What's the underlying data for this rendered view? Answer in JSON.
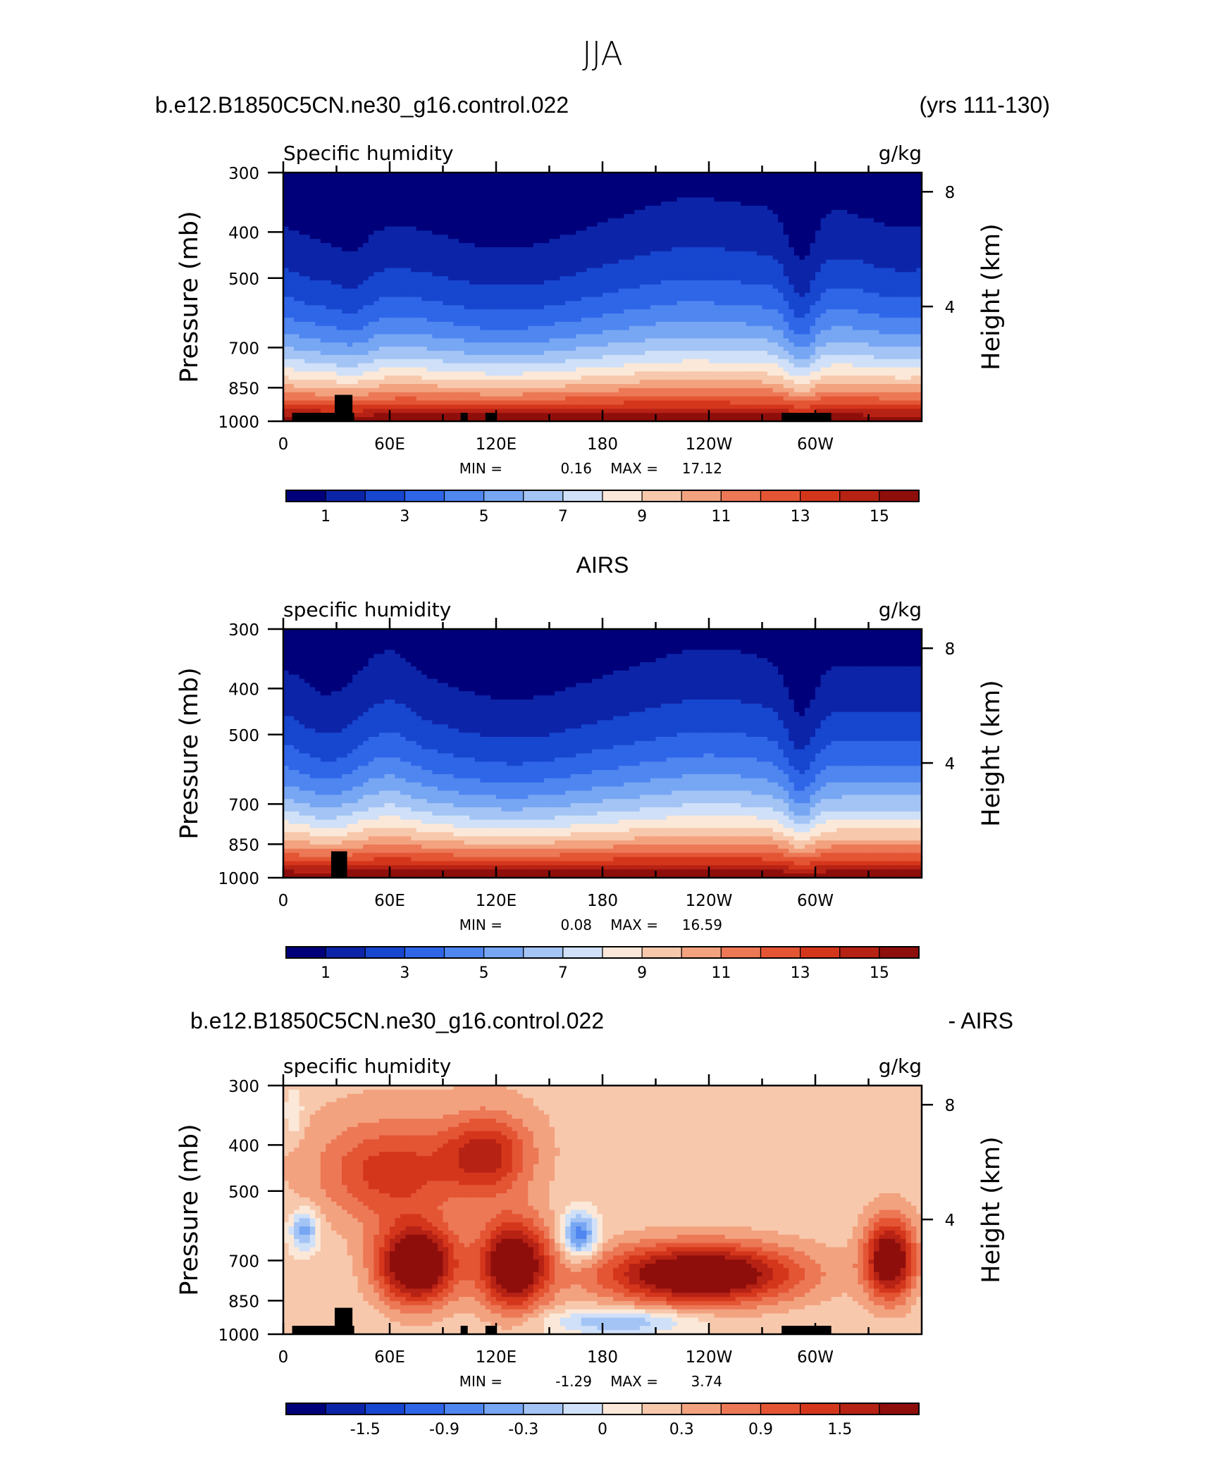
{
  "main_title": "JJA",
  "panels": [
    {
      "case_left": "b.e12.B1850C5CN.ne30_g16.control.022",
      "case_right": "(yrs 111-130)",
      "left_string": "Specific humidity",
      "right_string": "g/kg",
      "ylabel": "Pressure (mb)",
      "ylabel_right": "Height (km)",
      "min_label": "MIN =",
      "min_value": "0.16",
      "max_label": "MAX =",
      "max_value": "17.12",
      "colorbar_labels": [
        "1",
        "3",
        "5",
        "7",
        "9",
        "11",
        "13",
        "15"
      ]
    },
    {
      "case_center": "AIRS",
      "left_string": "specific humidity",
      "right_string": "g/kg",
      "ylabel": "Pressure (mb)",
      "ylabel_right": "Height (km)",
      "min_label": "MIN =",
      "min_value": "0.08",
      "max_label": "MAX =",
      "max_value": "16.59",
      "colorbar_labels": [
        "1",
        "3",
        "5",
        "7",
        "9",
        "11",
        "13",
        "15"
      ]
    },
    {
      "case_left": "b.e12.B1850C5CN.ne30_g16.control.022",
      "case_right": "- AIRS",
      "left_string": "specific humidity",
      "right_string": "g/kg",
      "ylabel": "Pressure (mb)",
      "ylabel_right": "Height (km)",
      "min_label": "MIN =",
      "min_value": "-1.29",
      "max_label": "MAX =",
      "max_value": "3.74",
      "colorbar_labels": [
        "-1.5",
        "-0.9",
        "-0.3",
        "0",
        "0.3",
        "0.9",
        "1.5"
      ]
    }
  ],
  "chart_data": [
    {
      "type": "heatmap",
      "title": "Specific humidity",
      "units": "g/kg",
      "xlabel": "",
      "ylabel": "Pressure (mb)",
      "y2label": "Height (km)",
      "x_ticks": [
        "0",
        "60E",
        "120E",
        "180",
        "120W",
        "60W"
      ],
      "x_tick_values": [
        0,
        60,
        120,
        180,
        240,
        300
      ],
      "y_ticks": [
        "300",
        "400",
        "500",
        "700",
        "850",
        "1000"
      ],
      "y_tick_values": [
        300,
        400,
        500,
        700,
        850,
        1000
      ],
      "y2_ticks": [
        "8",
        "4"
      ],
      "y2_tick_values": [
        8,
        4
      ],
      "xlim": [
        0,
        360
      ],
      "ylim": [
        1000,
        300
      ],
      "y_scale": "log",
      "colorbar_levels": [
        0,
        1,
        2,
        3,
        4,
        5,
        6,
        7,
        8,
        9,
        10,
        11,
        12,
        13,
        14,
        15,
        16
      ],
      "colors": [
        "#00007a",
        "#0c24a8",
        "#1746cf",
        "#2f66e8",
        "#4f86f0",
        "#77a6f3",
        "#a3c4f5",
        "#cfe0f8",
        "#fbe8d8",
        "#f7c8ac",
        "#f3a27f",
        "#ec7856",
        "#e45534",
        "#d4361c",
        "#b62214",
        "#8e0e0c"
      ],
      "min": 0.16,
      "max": 17.12
    },
    {
      "type": "heatmap",
      "title": "specific humidity",
      "units": "g/kg",
      "xlabel": "",
      "ylabel": "Pressure (mb)",
      "y2label": "Height (km)",
      "x_ticks": [
        "0",
        "60E",
        "120E",
        "180",
        "120W",
        "60W"
      ],
      "x_tick_values": [
        0,
        60,
        120,
        180,
        240,
        300
      ],
      "y_ticks": [
        "300",
        "400",
        "500",
        "700",
        "850",
        "1000"
      ],
      "y_tick_values": [
        300,
        400,
        500,
        700,
        850,
        1000
      ],
      "y2_ticks": [
        "8",
        "4"
      ],
      "y2_tick_values": [
        8,
        4
      ],
      "xlim": [
        0,
        360
      ],
      "ylim": [
        1000,
        300
      ],
      "y_scale": "log",
      "colorbar_levels": [
        0,
        1,
        2,
        3,
        4,
        5,
        6,
        7,
        8,
        9,
        10,
        11,
        12,
        13,
        14,
        15,
        16
      ],
      "colors": [
        "#00007a",
        "#0c24a8",
        "#1746cf",
        "#2f66e8",
        "#4f86f0",
        "#77a6f3",
        "#a3c4f5",
        "#cfe0f8",
        "#fbe8d8",
        "#f7c8ac",
        "#f3a27f",
        "#ec7856",
        "#e45534",
        "#d4361c",
        "#b62214",
        "#8e0e0c"
      ],
      "min": 0.08,
      "max": 16.59
    },
    {
      "type": "heatmap",
      "title": "specific humidity",
      "units": "g/kg",
      "xlabel": "",
      "ylabel": "Pressure (mb)",
      "y2label": "Height (km)",
      "x_ticks": [
        "0",
        "60E",
        "120E",
        "180",
        "120W",
        "60W"
      ],
      "x_tick_values": [
        0,
        60,
        120,
        180,
        240,
        300
      ],
      "y_ticks": [
        "300",
        "400",
        "500",
        "700",
        "850",
        "1000"
      ],
      "y_tick_values": [
        300,
        400,
        500,
        700,
        850,
        1000
      ],
      "y2_ticks": [
        "8",
        "4"
      ],
      "y2_tick_values": [
        8,
        4
      ],
      "xlim": [
        0,
        360
      ],
      "ylim": [
        1000,
        300
      ],
      "y_scale": "log",
      "colorbar_levels": [
        -2.1,
        -1.8,
        -1.5,
        -1.2,
        -0.9,
        -0.6,
        -0.3,
        0,
        0.3,
        0.6,
        0.9,
        1.2,
        1.5,
        1.8,
        2.1
      ],
      "colors": [
        "#00007a",
        "#0c24a8",
        "#1746cf",
        "#2f66e8",
        "#4f86f0",
        "#77a6f3",
        "#a3c4f5",
        "#cfe0f8",
        "#fbe8d8",
        "#f7c8ac",
        "#f3a27f",
        "#ec7856",
        "#e45534",
        "#d4361c",
        "#b62214",
        "#8e0e0c"
      ],
      "min": -1.29,
      "max": 3.74
    }
  ]
}
